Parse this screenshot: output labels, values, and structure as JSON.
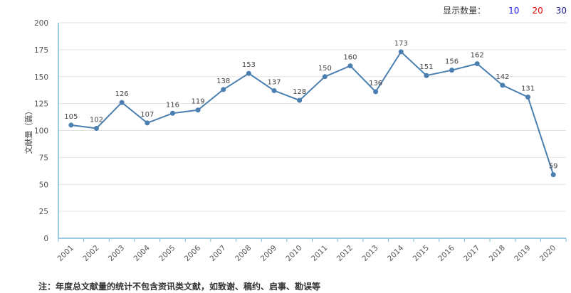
{
  "display_count": {
    "label": "显示数量：",
    "options": [
      {
        "label": "10",
        "color": "#1a1aff"
      },
      {
        "label": "20",
        "color": "#e60000"
      },
      {
        "label": "30",
        "color": "#1a1a8c"
      }
    ]
  },
  "footnote": "注：年度总文献量的统计不包含资讯类文献，如致谢、稿约、启事、勘误等",
  "chart_data": {
    "type": "line",
    "title": "",
    "xlabel": "",
    "ylabel": "文献量（篇）",
    "x": [
      "2001",
      "2002",
      "2003",
      "2004",
      "2005",
      "2006",
      "2007",
      "2008",
      "2009",
      "2010",
      "2011",
      "2012",
      "2013",
      "2014",
      "2015",
      "2016",
      "2017",
      "2018",
      "2019",
      "2020"
    ],
    "values": [
      105,
      102,
      126,
      107,
      116,
      119,
      138,
      153,
      137,
      128,
      150,
      160,
      136,
      173,
      151,
      156,
      162,
      142,
      131,
      59
    ],
    "ylim": [
      0,
      200
    ],
    "yticks": [
      0,
      25,
      50,
      75,
      100,
      125,
      150,
      175,
      200
    ],
    "grid": true,
    "line_color": "#4a7fb0"
  }
}
